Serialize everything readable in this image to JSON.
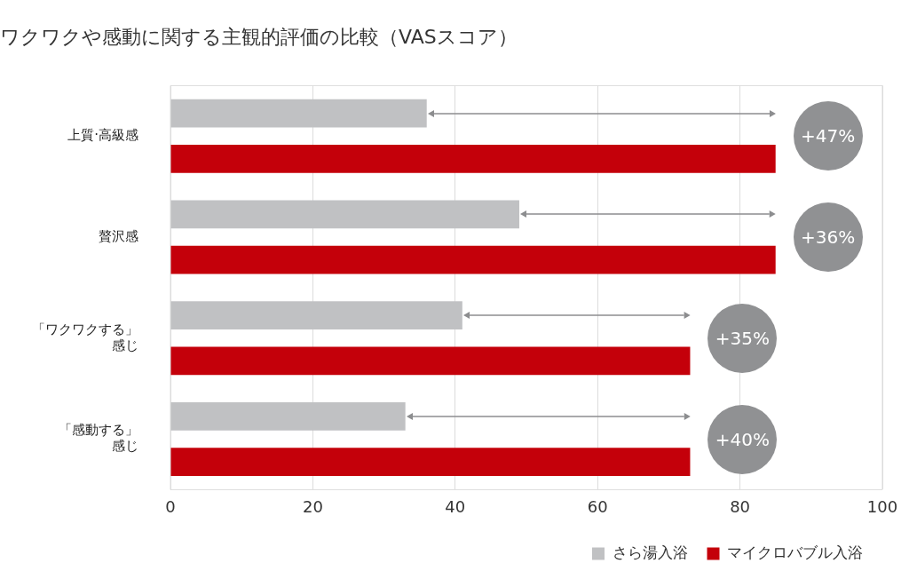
{
  "chart_data": {
    "type": "bar",
    "orientation": "horizontal",
    "title": "ワクワクや感動に関する主観的評価の比較（VASスコア）",
    "categories": [
      "上質·高級感",
      "贅沢感",
      "「ワクワクする」感じ",
      "「感動する」感じ"
    ],
    "series": [
      {
        "name": "さら湯入浴",
        "color": "#c0c1c3",
        "values": [
          36,
          49,
          41,
          33
        ]
      },
      {
        "name": "マイクロバブル入浴",
        "color": "#c4000a",
        "values": [
          85,
          85,
          73,
          73
        ]
      }
    ],
    "xlim": [
      0,
      100
    ],
    "xticks": [
      0,
      20,
      40,
      60,
      80,
      100
    ],
    "grid": "x",
    "legend": "bottom right",
    "annotations": [
      "+47%",
      "+36%",
      "+35%",
      "+40%"
    ]
  }
}
